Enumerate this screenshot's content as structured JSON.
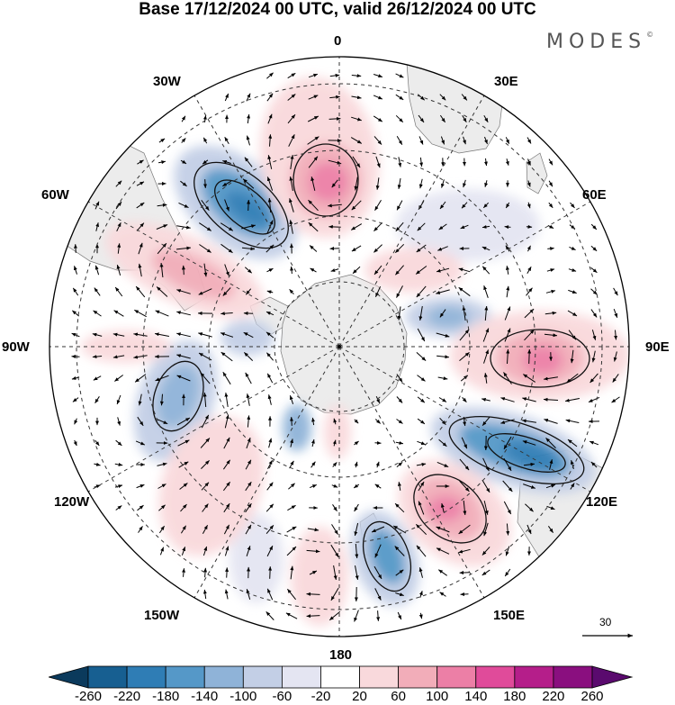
{
  "title": "Base 17/12/2024 00 UTC, valid 26/12/2024 00 UTC",
  "brand": "MODES",
  "brand_mark": "©",
  "longitude_labels": {
    "lon_0": "0",
    "lon_30e": "30E",
    "lon_60e": "60E",
    "lon_90e": "90E",
    "lon_120e": "120E",
    "lon_150e": "150E",
    "lon_180": "180",
    "lon_150w": "150W",
    "lon_120w": "120W",
    "lon_90w": "90W",
    "lon_60w": "60W",
    "lon_30w": "30W"
  },
  "reference_vector": {
    "label": "30"
  },
  "colorbar": {
    "levels": [
      "-260",
      "-220",
      "-180",
      "-140",
      "-100",
      "-60",
      "-20",
      "20",
      "60",
      "100",
      "140",
      "180",
      "220",
      "260"
    ],
    "colors": [
      "#0b3a5c",
      "#175f91",
      "#2f7db5",
      "#5598c8",
      "#8fb3d8",
      "#c3cfe6",
      "#e4e5f2",
      "#ffffff",
      "#f9d9dc",
      "#f2adb9",
      "#ec7fa6",
      "#e04b9a",
      "#b51e8a",
      "#8a0f7f",
      "#5a0a6e"
    ]
  },
  "colors": {
    "land": "#ececec",
    "positive_strong": "#e04b9a",
    "negative_strong": "#2f7db5"
  }
}
